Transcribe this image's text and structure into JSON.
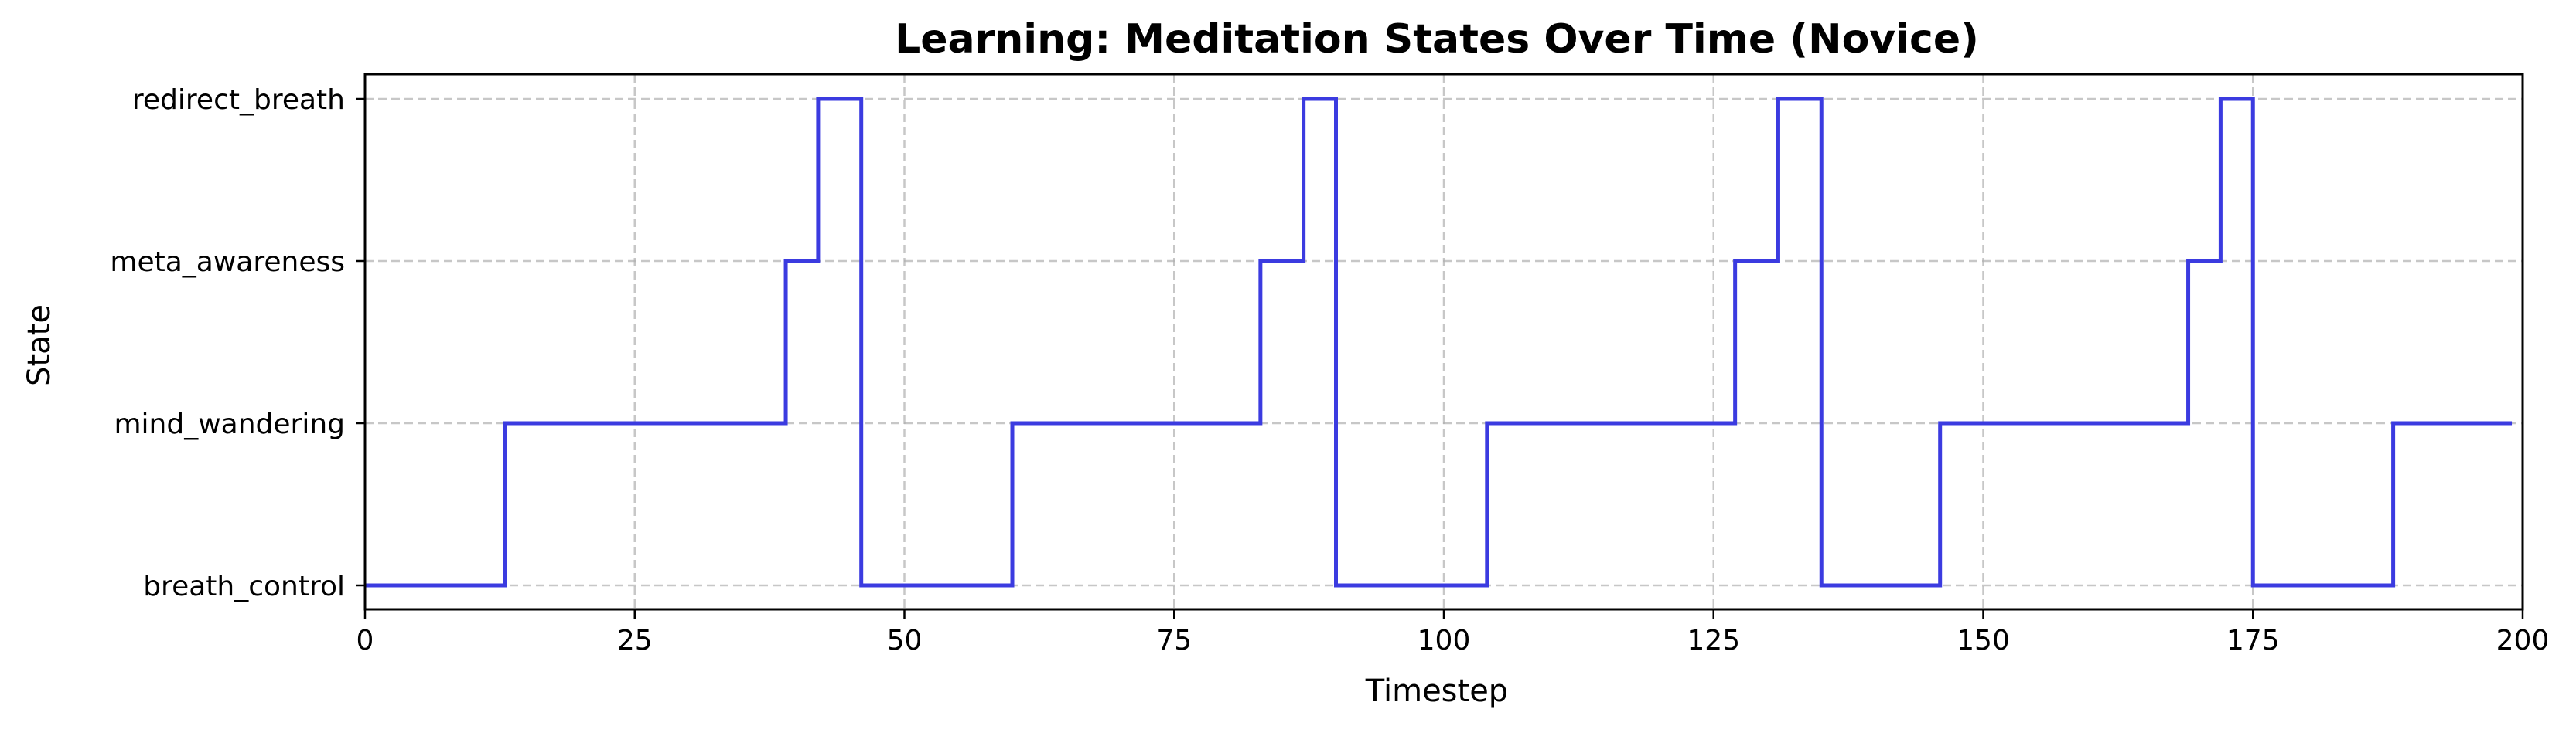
{
  "chart_data": {
    "type": "line",
    "step": true,
    "title": "Learning: Meditation States Over Time (Novice)",
    "xlabel": "Timestep",
    "ylabel": "State",
    "xlim": [
      0,
      200
    ],
    "x_ticks": [
      0,
      25,
      50,
      75,
      100,
      125,
      150,
      175,
      200
    ],
    "y_categories": [
      "breath_control",
      "mind_wandering",
      "meta_awareness",
      "redirect_breath"
    ],
    "grid": true,
    "color": "#3b3be0",
    "series": [
      {
        "points": [
          [
            0,
            "breath_control"
          ],
          [
            13,
            "mind_wandering"
          ],
          [
            39,
            "meta_awareness"
          ],
          [
            42,
            "redirect_breath"
          ],
          [
            46,
            "breath_control"
          ],
          [
            60,
            "mind_wandering"
          ],
          [
            83,
            "meta_awareness"
          ],
          [
            87,
            "redirect_breath"
          ],
          [
            90,
            "breath_control"
          ],
          [
            104,
            "mind_wandering"
          ],
          [
            127,
            "meta_awareness"
          ],
          [
            131,
            "redirect_breath"
          ],
          [
            135,
            "breath_control"
          ],
          [
            146,
            "mind_wandering"
          ],
          [
            169,
            "meta_awareness"
          ],
          [
            172,
            "redirect_breath"
          ],
          [
            175,
            "breath_control"
          ],
          [
            188,
            "mind_wandering"
          ],
          [
            199,
            "mind_wandering"
          ]
        ]
      }
    ]
  }
}
